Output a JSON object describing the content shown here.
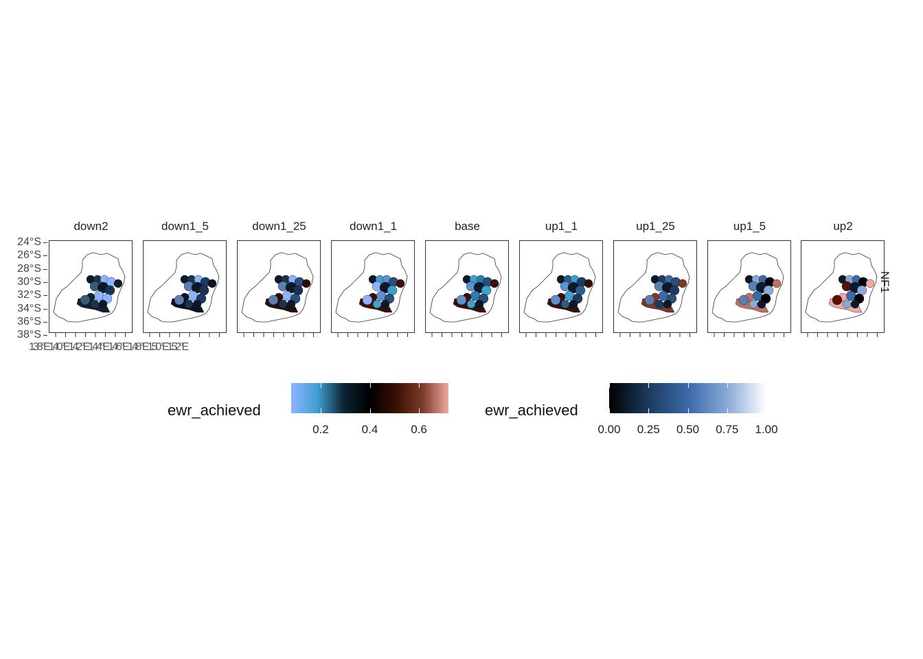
{
  "facets": [
    "down2",
    "down1_5",
    "down1_25",
    "down1_1",
    "base",
    "up1_1",
    "up1_25",
    "up1_5",
    "up2"
  ],
  "row_strip": "NF1",
  "y_axis_ticks": [
    "24°S",
    "26°S",
    "28°S",
    "30°S",
    "32°S",
    "34°S",
    "36°S",
    "38°S"
  ],
  "x_axis_text": "138°E140°E142°E144°E146°E148°E150°E152°E",
  "x_axis_last": "152°E",
  "x_axis_first": "138",
  "legend_left": {
    "title": "ewr_achieved",
    "ticks": [
      "0.2",
      "0.4",
      "0.6"
    ],
    "tick_values": [
      0.2,
      0.4,
      0.6
    ],
    "range": [
      0.08,
      0.72
    ],
    "colors": [
      "#8eb4ff",
      "#3f9fd1",
      "#0c2533",
      "#000000",
      "#3a0f05",
      "#7a3a28",
      "#f0a8a0"
    ]
  },
  "legend_right": {
    "title": "ewr_achieved",
    "ticks": [
      "0.00",
      "0.25",
      "0.50",
      "0.75",
      "1.00"
    ],
    "tick_values": [
      0,
      0.25,
      0.5,
      0.75,
      1.0
    ],
    "range": [
      0,
      1.0
    ],
    "colors": [
      "#000000",
      "#1c3a5e",
      "#3a6aa8",
      "#8aa8d8",
      "#ffffff"
    ]
  },
  "facet_palettes": {
    "down2": [
      "#0b1a2a",
      "#1a3350",
      "#8eb4ff",
      "#8eb4ff",
      "#102030",
      "#3d5a7a"
    ],
    "down1_5": [
      "#0b1a2a",
      "#1a3350",
      "#8eb4ff",
      "#1d3a60",
      "#0a141f",
      "#5a7fb0"
    ],
    "down1_25": [
      "#0b1a2a",
      "#1a3350",
      "#8eb4ff",
      "#2a4f7a",
      "#2a0e05",
      "#5a7fb0"
    ],
    "down1_1": [
      "#0b1a2a",
      "#3f9fd1",
      "#5f90d0",
      "#2a4f7a",
      "#3a0f05",
      "#8eb4ff"
    ],
    "base": [
      "#0b1a2a",
      "#3f9fd1",
      "#2a7fb0",
      "#2a4f7a",
      "#3a0f05",
      "#5f90d0"
    ],
    "up1_1": [
      "#0b1a2a",
      "#2a5f8a",
      "#3f9fd1",
      "#1d3a60",
      "#3a0f05",
      "#5f90d0"
    ],
    "up1_25": [
      "#0b1a2a",
      "#1d3a60",
      "#3a6aa8",
      "#2a4f7a",
      "#7a3a28",
      "#5a7fb0"
    ],
    "up1_5": [
      "#0b1a2a",
      "#8aa8d8",
      "#3a6aa8",
      "#000000",
      "#c07060",
      "#5a7fb0"
    ],
    "up2": [
      "#0b1a2a",
      "#8aa8d8",
      "#3a6aa8",
      "#000000",
      "#f0a8a0",
      "#5a0f05"
    ]
  }
}
